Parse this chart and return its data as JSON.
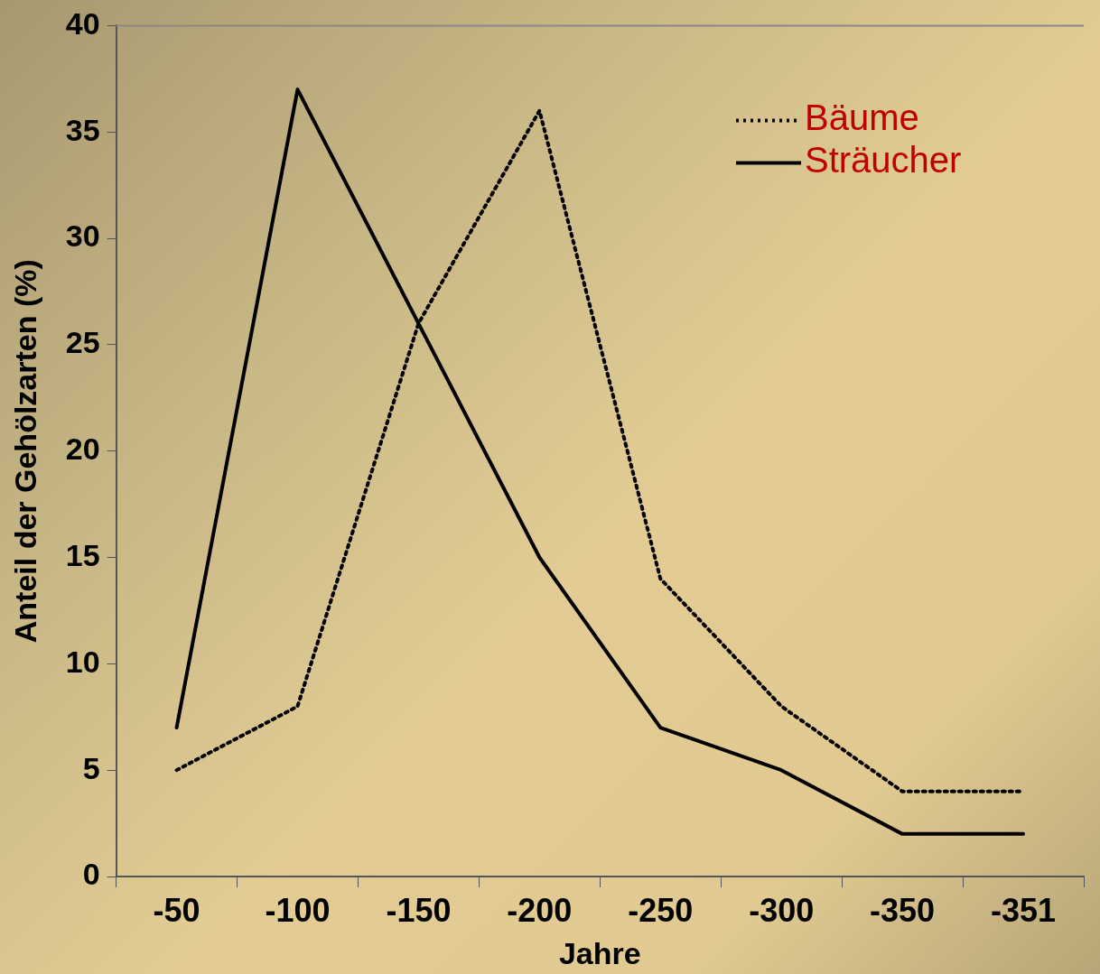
{
  "chart_data": {
    "type": "line",
    "xlabel": "Jahre",
    "ylabel": "Anteil der Gehölzarten (%)",
    "categories": [
      "-50",
      "-100",
      "-150",
      "-200",
      "-250",
      "-300",
      "-350",
      "-351"
    ],
    "series": [
      {
        "name": "Bäume",
        "color": "#000000",
        "line_style": "dotted",
        "values": [
          5,
          8,
          26,
          36,
          14,
          8,
          4,
          4
        ]
      },
      {
        "name": "Sträucher",
        "color": "#000000",
        "line_style": "solid",
        "values": [
          7,
          37,
          26,
          15,
          7,
          5,
          2,
          2
        ]
      }
    ],
    "ylim": [
      0,
      40
    ],
    "yticks": [
      0,
      5,
      10,
      15,
      20,
      25,
      30,
      35,
      40
    ],
    "grid": false,
    "legend": "top right",
    "marker": "none"
  }
}
